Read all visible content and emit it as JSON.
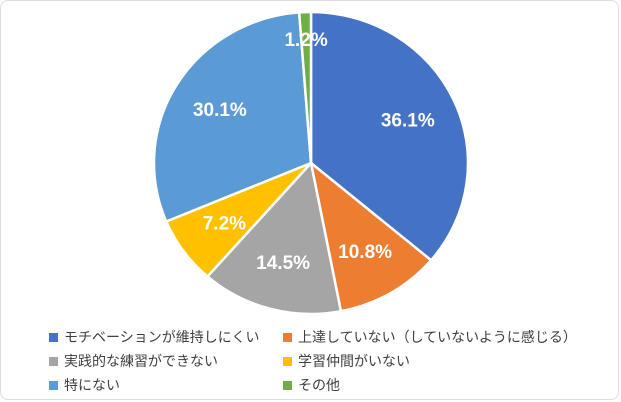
{
  "chart_data": {
    "type": "pie",
    "title": "",
    "direction": "clockwise",
    "start_angle_deg": 0,
    "slices": [
      {
        "label": "モチベーションが維持しにくい",
        "value": 36.1,
        "percent_label": "36.1%",
        "color": "#4472C4"
      },
      {
        "label": "上達していない（していないように感じる）",
        "value": 10.8,
        "percent_label": "10.8%",
        "color": "#ED7D31"
      },
      {
        "label": "実践的な練習ができない",
        "value": 14.5,
        "percent_label": "14.5%",
        "color": "#A5A5A5"
      },
      {
        "label": "学習仲間がいない",
        "value": 7.2,
        "percent_label": "7.2%",
        "color": "#FFC000"
      },
      {
        "label": "特にない",
        "value": 30.1,
        "percent_label": "30.1%",
        "color": "#5B9BD5"
      },
      {
        "label": "その他",
        "value": 1.2,
        "percent_label": "1.2%",
        "color": "#70AD47"
      }
    ],
    "data_label_color": "#FFFFFF",
    "slice_border_color": "#FFFFFF",
    "legend_position": "bottom",
    "legend_columns": 2,
    "legend_text_color": "#404040",
    "background_color": "#FFFFFF"
  }
}
